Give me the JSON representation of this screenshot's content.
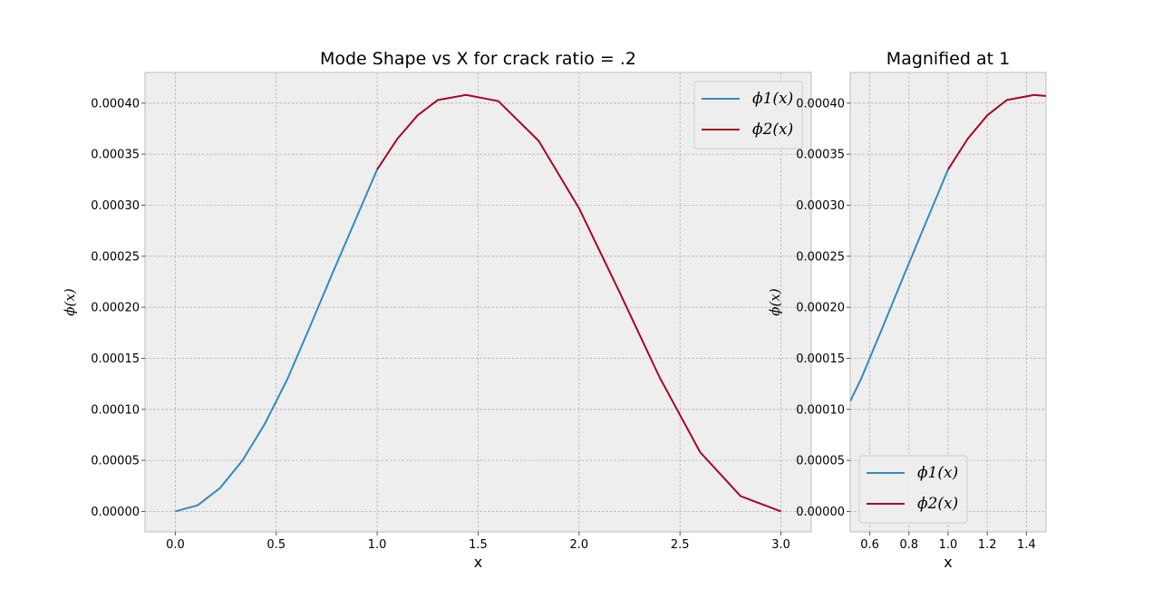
{
  "chart_data": [
    {
      "type": "line",
      "title": "Mode Shape vs X for crack ratio = .2",
      "xlabel": "x",
      "ylabel": "ϕ(x)",
      "xlim": [
        -0.15,
        3.15
      ],
      "ylim": [
        -2e-05,
        0.00043
      ],
      "xticks": [
        0.0,
        0.5,
        1.0,
        1.5,
        2.0,
        2.5,
        3.0
      ],
      "xtick_labels": [
        "0.0",
        "0.5",
        "1.0",
        "1.5",
        "2.0",
        "2.5",
        "3.0"
      ],
      "yticks": [
        0,
        5e-05,
        0.0001,
        0.00015,
        0.0002,
        0.00025,
        0.0003,
        0.00035,
        0.0004
      ],
      "ytick_labels": [
        "0.00000",
        "0.00005",
        "0.00010",
        "0.00015",
        "0.00020",
        "0.00025",
        "0.00030",
        "0.00035",
        "0.00040"
      ],
      "grid": true,
      "legend_position": "top-right",
      "series": [
        {
          "name": "ϕ1(x)",
          "color": "#348abd",
          "x": [
            0,
            0.111,
            0.222,
            0.333,
            0.444,
            0.556,
            0.667,
            0.778,
            0.889,
            1.0
          ],
          "y": [
            0,
            6e-06,
            2.3e-05,
            5e-05,
            8.6e-05,
            0.00013,
            0.000181,
            0.000233,
            0.000284,
            0.000335
          ]
        },
        {
          "name": "ϕ2(x)",
          "color": "#a60628",
          "x": [
            1.0,
            1.1,
            1.2,
            1.3,
            1.44,
            1.6,
            1.8,
            2.0,
            2.2,
            2.4,
            2.6,
            2.8,
            3.0
          ],
          "y": [
            0.000335,
            0.000365,
            0.000388,
            0.000403,
            0.000408,
            0.000402,
            0.000363,
            0.000297,
            0.000215,
            0.000131,
            5.8e-05,
            1.5e-05,
            0
          ]
        }
      ]
    },
    {
      "type": "line",
      "title": "Magnified at 1",
      "xlabel": "x",
      "ylabel": "ϕ(x)",
      "xlim": [
        0.5,
        1.5
      ],
      "ylim": [
        -2e-05,
        0.00043
      ],
      "xticks": [
        0.6,
        0.8,
        1.0,
        1.2,
        1.4
      ],
      "xtick_labels": [
        "0.6",
        "0.8",
        "1.0",
        "1.2",
        "1.4"
      ],
      "yticks": [
        0,
        5e-05,
        0.0001,
        0.00015,
        0.0002,
        0.00025,
        0.0003,
        0.00035,
        0.0004
      ],
      "ytick_labels": [
        "0.00000",
        "0.00005",
        "0.00010",
        "0.00015",
        "0.00020",
        "0.00025",
        "0.00030",
        "0.00035",
        "0.00040"
      ],
      "grid": true,
      "legend_position": "bottom-right",
      "series": [
        {
          "name": "ϕ1(x)",
          "color": "#348abd",
          "x": [
            0.5,
            0.556,
            0.667,
            0.778,
            0.889,
            1.0
          ],
          "y": [
            0.000108,
            0.00013,
            0.000181,
            0.000233,
            0.000284,
            0.000335
          ]
        },
        {
          "name": "ϕ2(x)",
          "color": "#a60628",
          "x": [
            1.0,
            1.1,
            1.2,
            1.3,
            1.44,
            1.5
          ],
          "y": [
            0.000335,
            0.000365,
            0.000388,
            0.000403,
            0.000408,
            0.000407
          ]
        }
      ]
    }
  ]
}
